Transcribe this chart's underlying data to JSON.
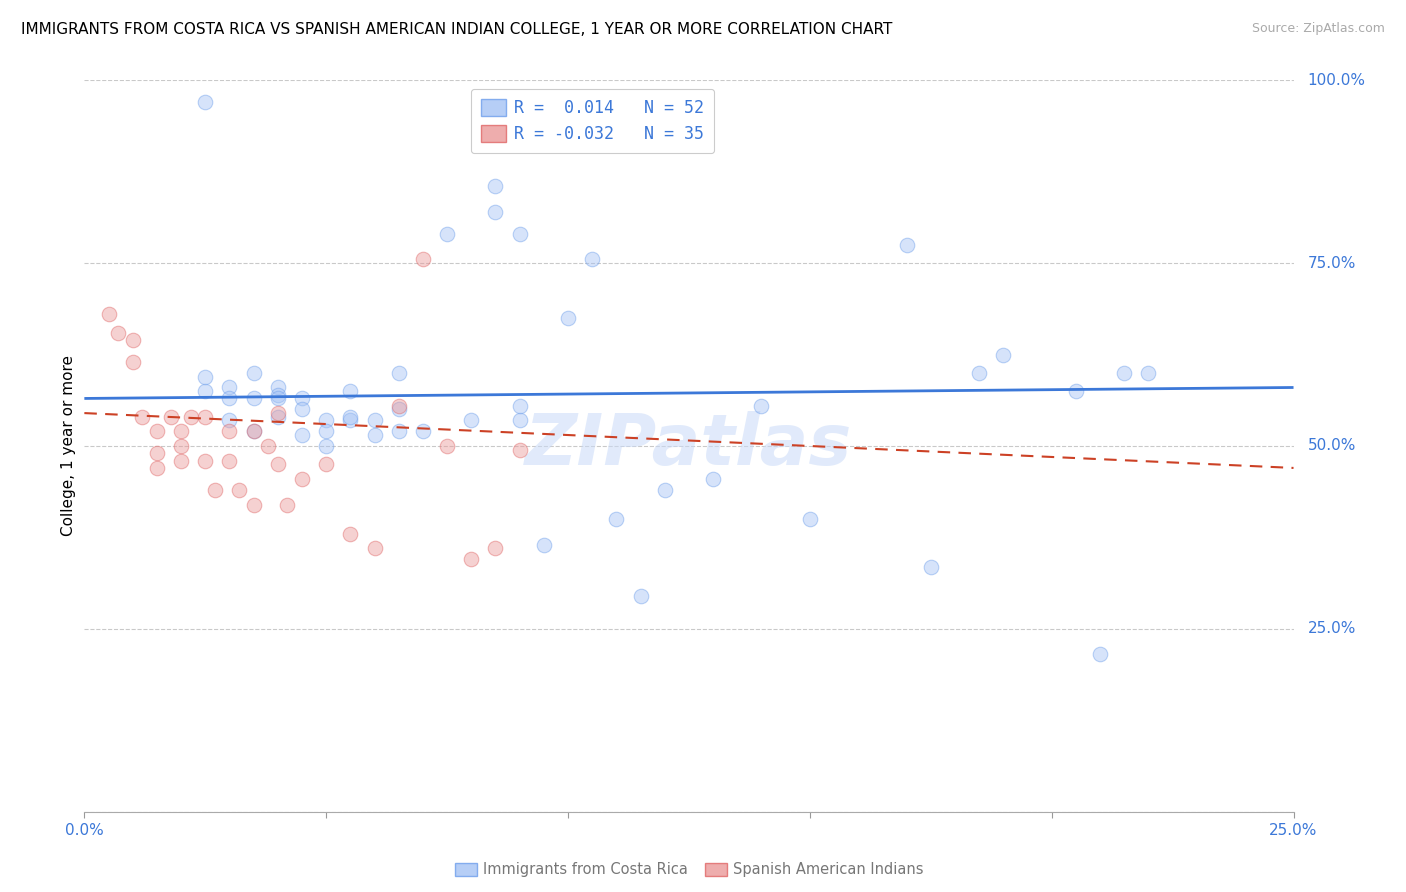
{
  "title": "IMMIGRANTS FROM COSTA RICA VS SPANISH AMERICAN INDIAN COLLEGE, 1 YEAR OR MORE CORRELATION CHART",
  "source": "Source: ZipAtlas.com",
  "ylabel": "College, 1 year or more",
  "xlim": [
    0.0,
    0.25
  ],
  "ylim": [
    0.0,
    1.0
  ],
  "xticks": [
    0.0,
    0.05,
    0.1,
    0.15,
    0.2,
    0.25
  ],
  "xtick_labels": [
    "0.0%",
    "",
    "",
    "",
    "",
    "25.0%"
  ],
  "ytick_labels_right": [
    "100.0%",
    "75.0%",
    "50.0%",
    "25.0%"
  ],
  "ytick_positions_right": [
    1.0,
    0.75,
    0.5,
    0.25
  ],
  "legend_r1": "R =  0.014   N = 52",
  "legend_r2": "R = -0.032   N = 35",
  "blue_color": "#a4c2f4",
  "pink_color": "#ea9999",
  "blue_edge_color": "#6d9eeb",
  "pink_edge_color": "#e06666",
  "blue_line_color": "#3c78d8",
  "pink_line_color": "#cc4125",
  "watermark": "ZIPatlas",
  "blue_scatter_x": [
    0.025,
    0.03,
    0.03,
    0.035,
    0.035,
    0.04,
    0.04,
    0.04,
    0.045,
    0.045,
    0.05,
    0.05,
    0.055,
    0.055,
    0.06,
    0.065,
    0.065,
    0.065,
    0.07,
    0.075,
    0.08,
    0.085,
    0.085,
    0.09,
    0.09,
    0.09,
    0.095,
    0.1,
    0.105,
    0.11,
    0.115,
    0.12,
    0.13,
    0.14,
    0.15,
    0.17,
    0.175,
    0.185,
    0.19,
    0.205,
    0.21,
    0.215,
    0.025,
    0.025,
    0.03,
    0.035,
    0.04,
    0.045,
    0.05,
    0.055,
    0.06,
    0.22
  ],
  "blue_scatter_y": [
    0.97,
    0.58,
    0.565,
    0.6,
    0.565,
    0.58,
    0.57,
    0.54,
    0.565,
    0.55,
    0.535,
    0.52,
    0.535,
    0.575,
    0.535,
    0.52,
    0.55,
    0.6,
    0.52,
    0.79,
    0.535,
    0.82,
    0.855,
    0.79,
    0.535,
    0.555,
    0.365,
    0.675,
    0.755,
    0.4,
    0.295,
    0.44,
    0.455,
    0.555,
    0.4,
    0.775,
    0.335,
    0.6,
    0.625,
    0.575,
    0.215,
    0.6,
    0.575,
    0.595,
    0.535,
    0.52,
    0.565,
    0.515,
    0.5,
    0.54,
    0.515,
    0.6
  ],
  "pink_scatter_x": [
    0.005,
    0.007,
    0.01,
    0.01,
    0.012,
    0.015,
    0.015,
    0.015,
    0.018,
    0.02,
    0.02,
    0.02,
    0.022,
    0.025,
    0.025,
    0.027,
    0.03,
    0.03,
    0.032,
    0.035,
    0.035,
    0.038,
    0.04,
    0.04,
    0.042,
    0.045,
    0.05,
    0.055,
    0.06,
    0.065,
    0.07,
    0.075,
    0.08,
    0.085,
    0.09
  ],
  "pink_scatter_y": [
    0.68,
    0.655,
    0.645,
    0.615,
    0.54,
    0.52,
    0.49,
    0.47,
    0.54,
    0.52,
    0.5,
    0.48,
    0.54,
    0.54,
    0.48,
    0.44,
    0.52,
    0.48,
    0.44,
    0.52,
    0.42,
    0.5,
    0.545,
    0.475,
    0.42,
    0.455,
    0.475,
    0.38,
    0.36,
    0.555,
    0.755,
    0.5,
    0.345,
    0.36,
    0.495
  ],
  "blue_trend_x": [
    0.0,
    0.25
  ],
  "blue_trend_y": [
    0.565,
    0.58
  ],
  "pink_trend_x": [
    0.0,
    0.25
  ],
  "pink_trend_y": [
    0.545,
    0.47
  ],
  "grid_color": "#c9c9c9",
  "background_color": "#ffffff",
  "title_fontsize": 11,
  "axis_label_fontsize": 11,
  "tick_fontsize": 11,
  "scatter_size": 110,
  "scatter_alpha": 0.45,
  "scatter_linewidth": 0.8
}
